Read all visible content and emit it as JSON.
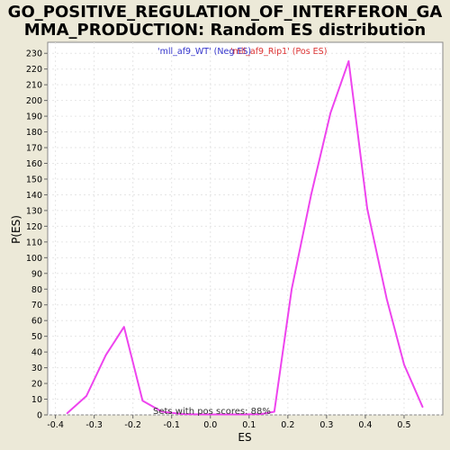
{
  "chart_data": {
    "type": "line",
    "title_lines": [
      "GO_POSITIVE_REGULATION_OF_INTERFERON_GA",
      "MMA_PRODUCTION: Random ES distribution"
    ],
    "xlabel": "ES",
    "ylabel": "P(ES)",
    "xlim": [
      -0.42,
      0.6
    ],
    "ylim": [
      0,
      237
    ],
    "xticks": [
      -0.4,
      -0.3,
      -0.2,
      -0.1,
      0.0,
      0.1,
      0.2,
      0.3,
      0.4,
      0.5
    ],
    "xtick_labels": [
      "-0.4",
      "-0.3",
      "-0.2",
      "-0.1",
      "0.0",
      "0.1",
      "0.2",
      "0.3",
      "0.4",
      "0.5"
    ],
    "yticks": [
      0,
      10,
      20,
      30,
      40,
      50,
      60,
      70,
      80,
      90,
      100,
      110,
      120,
      130,
      140,
      150,
      160,
      170,
      180,
      190,
      200,
      210,
      220,
      230
    ],
    "ytick_labels": [
      "0",
      "10",
      "20",
      "30",
      "40",
      "50",
      "60",
      "70",
      "80",
      "90",
      "100",
      "110",
      "120",
      "130",
      "140",
      "150",
      "160",
      "170",
      "180",
      "190",
      "200",
      "210",
      "220",
      "230"
    ],
    "grid": true,
    "series": [
      {
        "color": "#ee44ee",
        "x": [
          -0.37,
          -0.32,
          -0.27,
          -0.223,
          -0.175,
          -0.125,
          -0.07,
          -0.02,
          0.03,
          0.08,
          0.13,
          0.165,
          0.21,
          0.26,
          0.31,
          0.357,
          0.405,
          0.455,
          0.5,
          0.548
        ],
        "y": [
          1,
          12,
          38,
          56,
          9,
          2,
          0.5,
          0.3,
          0.3,
          0.3,
          0.5,
          2,
          80,
          140,
          192,
          225,
          131,
          74,
          32,
          5
        ]
      }
    ],
    "legend": [
      {
        "label": "'mll_af9_WT' (Neg ES)",
        "color": "#3333cc"
      },
      {
        "label": "'mll_af9_Rip1' (Pos ES)",
        "color": "#dd3333"
      }
    ],
    "legend_position": "top",
    "annotation": "Sets with pos scores: 88%",
    "colors": {
      "background": "#ece9d8",
      "plot_background": "#ffffff",
      "grid": "#e6e6e6"
    }
  }
}
